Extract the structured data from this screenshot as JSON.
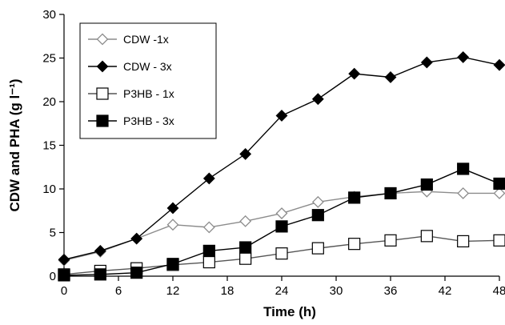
{
  "chart_data": {
    "type": "line",
    "title": "",
    "xlabel": "Time (h)",
    "ylabel": "CDW and PHA (g l⁻¹)",
    "xlim": [
      0,
      48
    ],
    "ylim": [
      0,
      30
    ],
    "xticks": [
      0,
      6,
      12,
      18,
      24,
      30,
      36,
      42,
      48
    ],
    "yticks": [
      0,
      5,
      10,
      15,
      20,
      25,
      30
    ],
    "grid": false,
    "legend_position": "top-left",
    "series": [
      {
        "name": "CDW -1x",
        "marker": "open-diamond",
        "color": "#8c8c8c",
        "x": [
          0,
          4,
          8,
          12,
          16,
          20,
          24,
          28,
          32,
          36,
          40,
          44,
          48
        ],
        "y": [
          1.8,
          2.8,
          4.3,
          5.9,
          5.6,
          6.3,
          7.2,
          8.5,
          9.1,
          9.5,
          9.7,
          9.5,
          9.5
        ]
      },
      {
        "name": "CDW - 3x",
        "marker": "filled-diamond",
        "color": "#000000",
        "x": [
          0,
          4,
          8,
          12,
          16,
          20,
          24,
          28,
          32,
          36,
          40,
          44,
          48
        ],
        "y": [
          1.9,
          2.9,
          4.3,
          7.8,
          11.2,
          14.0,
          18.4,
          20.3,
          23.2,
          22.8,
          24.5,
          25.1,
          24.2
        ]
      },
      {
        "name": "P3HB - 1x",
        "marker": "open-square",
        "color": "#555555",
        "x": [
          0,
          4,
          8,
          12,
          16,
          20,
          24,
          28,
          32,
          36,
          40,
          44,
          48
        ],
        "y": [
          0.2,
          0.6,
          0.9,
          1.3,
          1.6,
          2.0,
          2.6,
          3.2,
          3.7,
          4.1,
          4.6,
          4.0,
          4.1
        ]
      },
      {
        "name": "P3HB - 3x",
        "marker": "filled-square",
        "color": "#000000",
        "x": [
          0,
          4,
          8,
          12,
          16,
          20,
          24,
          28,
          32,
          36,
          40,
          44,
          48
        ],
        "y": [
          0.1,
          0.2,
          0.4,
          1.4,
          2.9,
          3.3,
          5.7,
          7.0,
          9.0,
          9.5,
          10.5,
          12.3,
          10.6
        ]
      }
    ]
  }
}
